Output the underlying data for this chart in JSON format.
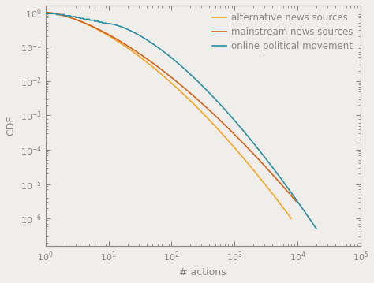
{
  "title": "",
  "xlabel": "# actions",
  "ylabel": "CDF",
  "legend_labels": [
    "alternative news sources",
    "mainstream news sources",
    "online political movement"
  ],
  "line_colors": [
    "#f5a623",
    "#d4621a",
    "#2a8fa0"
  ],
  "background_color": "#f0eeeb",
  "axes_color": "#888888",
  "text_color": "#888888",
  "font_size": 9,
  "legend_font_size": 8.5,
  "xlim": [
    1,
    100000
  ],
  "ylim": [
    2e-07,
    2.0
  ]
}
